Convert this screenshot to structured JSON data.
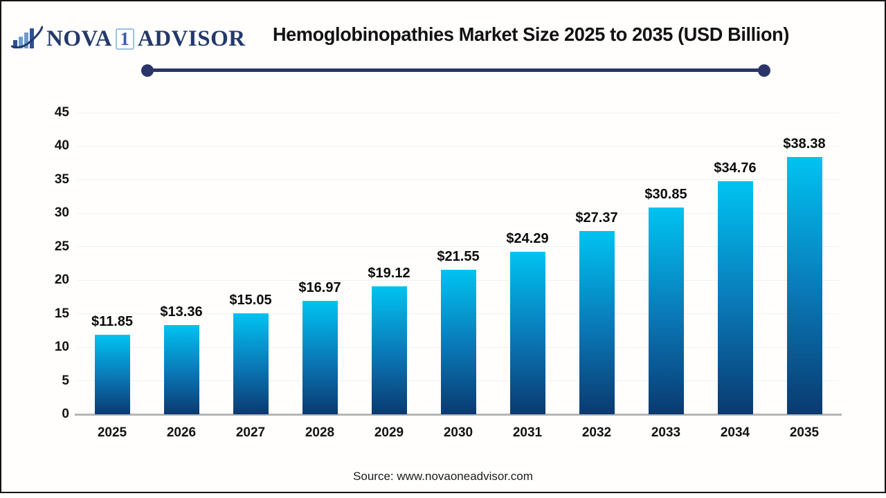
{
  "logo": {
    "icon": "bar-chart-logo-icon",
    "part1": "NOVA",
    "boxed": "1",
    "part2": "ADVISOR"
  },
  "header": {
    "title": "Hemoglobinopathies Market Size 2025 to 2035 (USD Billion)"
  },
  "footer": {
    "source": "Source: www.novaoneadvisor.com"
  },
  "chart_data": {
    "type": "bar",
    "title": "Hemoglobinopathies Market Size 2025 to 2035 (USD Billion)",
    "categories": [
      "2025",
      "2026",
      "2027",
      "2028",
      "2029",
      "2030",
      "2031",
      "2032",
      "2033",
      "2034",
      "2035"
    ],
    "values": [
      11.85,
      13.36,
      15.05,
      16.97,
      19.12,
      21.55,
      24.29,
      27.37,
      30.85,
      34.76,
      38.38
    ],
    "labels": [
      "$11.85",
      "$13.36",
      "$15.05",
      "$16.97",
      "$19.12",
      "$21.55",
      "$24.29",
      "$27.37",
      "$30.85",
      "$34.76",
      "$38.38"
    ],
    "xlabel": "",
    "ylabel": "",
    "unit": "USD Billion",
    "ylim": [
      0,
      45
    ],
    "yticks": [
      0,
      5,
      10,
      15,
      20,
      25,
      30,
      35,
      40,
      45
    ],
    "grid": true,
    "legend_position": "none",
    "colors": {
      "bar_top": "#00c3f1",
      "bar_bottom": "#0a3a70",
      "gridline": "#f0f0f0",
      "baseline": "#b5b5b5",
      "text": "#121212",
      "accent_navy": "#2a356b",
      "logo_navy": "#24396b",
      "logo_light_blue": "#9cc2e5"
    }
  }
}
